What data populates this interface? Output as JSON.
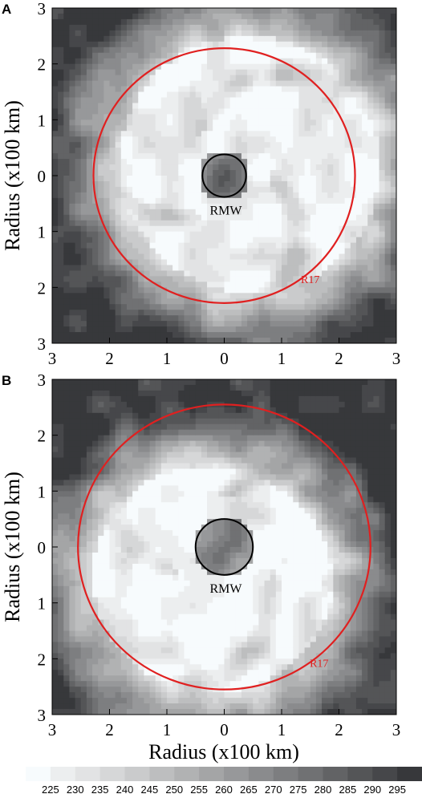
{
  "chart_data": [
    {
      "type": "heatmap",
      "panel_label": "A",
      "ylabel": "Radius (x100 km)",
      "xlabel": "",
      "xlim": [
        -3,
        3
      ],
      "ylim": [
        -3,
        3
      ],
      "x_tick_labels": [
        "3",
        "2",
        "1",
        "0",
        "1",
        "2",
        "3"
      ],
      "y_tick_labels": [
        "3",
        "2",
        "1",
        "0",
        "1",
        "2",
        "3"
      ],
      "circles": [
        {
          "label": "RMW",
          "radius": 0.38,
          "color": "#000000"
        },
        {
          "label": "R17",
          "radius": 2.28,
          "color": "#e02020"
        }
      ],
      "field": {
        "eye_radius": 0.45,
        "cloud_radius": 2.25,
        "inner_band": [
          -0.55,
          0.9
        ],
        "asymmetry_angle_deg": 25,
        "asymmetry_strength": 0.22
      }
    },
    {
      "type": "heatmap",
      "panel_label": "B",
      "ylabel": "Radius (x100 km)",
      "xlabel": "Radius (x100 km)",
      "xlim": [
        -3,
        3
      ],
      "ylim": [
        -3,
        3
      ],
      "x_tick_labels": [
        "3",
        "2",
        "1",
        "0",
        "1",
        "2",
        "3"
      ],
      "y_tick_labels": [
        "3",
        "2",
        "1",
        "0",
        "1",
        "2",
        "3"
      ],
      "circles": [
        {
          "label": "RMW",
          "radius": 0.5,
          "color": "#000000"
        },
        {
          "label": "R17",
          "radius": 2.55,
          "color": "#e02020"
        }
      ],
      "field": {
        "eye_radius": 0.55,
        "cloud_radius": 2.0,
        "inner_band": [
          -0.35,
          1.05
        ],
        "asymmetry_angle_deg": 250,
        "asymmetry_strength": 0.32
      }
    }
  ],
  "colorbar": {
    "tick_labels": [
      "225",
      "230",
      "235",
      "240",
      "245",
      "250",
      "255",
      "260",
      "265",
      "270",
      "275",
      "280",
      "285",
      "290",
      "295"
    ],
    "colors": [
      "#f7fbfd",
      "#eceeef",
      "#e2e3e4",
      "#d6d7d8",
      "#cacbcc",
      "#bdbebf",
      "#b1b2b3",
      "#a4a5a6",
      "#97989a",
      "#8a8b8d",
      "#7d7e80",
      "#707173",
      "#626365",
      "#545557",
      "#46474a",
      "#37383b"
    ]
  }
}
